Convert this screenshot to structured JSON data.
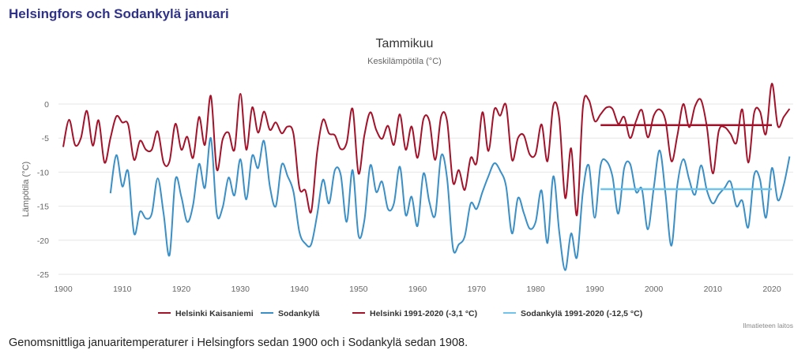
{
  "page": {
    "heading": "Helsingfors och Sodankylä januari",
    "caption": "Genomsnittliga januaritemperaturer i Helsingfors sedan 1900 och i Sodankylä sedan 1908."
  },
  "chart_data": {
    "type": "line",
    "title": "Tammikuu",
    "subtitle": "Keskilämpötila (°C)",
    "xlabel": "",
    "ylabel": "Lämpötila (°C)",
    "xlim": [
      1900,
      2023
    ],
    "ylim": [
      -25,
      0
    ],
    "x_ticks": [
      1900,
      1910,
      1920,
      1930,
      1940,
      1950,
      1960,
      1970,
      1980,
      1990,
      2000,
      2010,
      2020
    ],
    "y_ticks": [
      0,
      -5,
      -10,
      -15,
      -20,
      -25
    ],
    "grid": true,
    "legend_position": "bottom",
    "credit": "Ilmatieteen laitos",
    "series": [
      {
        "name": "Helsinki Kaisaniemi",
        "color": "#a4122a",
        "start_year": 1900,
        "values": [
          -6.3,
          -2.3,
          -6.0,
          -5.0,
          -1.0,
          -6.1,
          -2.4,
          -8.6,
          -5.0,
          -1.8,
          -2.7,
          -3.0,
          -8.2,
          -5.4,
          -6.7,
          -6.7,
          -4.0,
          -8.6,
          -8.4,
          -2.9,
          -6.7,
          -4.8,
          -7.9,
          -1.9,
          -6.0,
          1.2,
          -9.6,
          -5.2,
          -4.2,
          -6.7,
          1.5,
          -6.7,
          -0.5,
          -4.2,
          -1.1,
          -3.8,
          -2.7,
          -4.3,
          -3.3,
          -4.4,
          -12.3,
          -12.7,
          -15.8,
          -7.1,
          -2.3,
          -4.3,
          -4.6,
          -6.6,
          -5.7,
          -0.7,
          -10.2,
          -4.6,
          -1.2,
          -3.8,
          -5.1,
          -3.2,
          -6.0,
          -1.5,
          -6.7,
          -3.3,
          -7.9,
          -2.2,
          -2.5,
          -8.2,
          -1.8,
          -2.5,
          -11.5,
          -9.7,
          -12.6,
          -7.9,
          -8.6,
          -1.2,
          -6.9,
          -0.8,
          -1.7,
          -0.2,
          -8.2,
          -5.0,
          -4.6,
          -7.4,
          -7.3,
          -3.0,
          -8.4,
          -0.2,
          -2.1,
          -13.8,
          -6.5,
          -16.3,
          -0.5,
          0.6,
          -2.5,
          -1.5,
          -0.5,
          -0.7,
          -2.9,
          -1.9,
          -5.0,
          -2.5,
          -0.9,
          -4.9,
          -1.7,
          -0.8,
          -2.5,
          -8.4,
          -4.6,
          0.0,
          -3.4,
          -0.3,
          0.6,
          -3.4,
          -10.2,
          -4.0,
          -3.4,
          -4.4,
          -5.7,
          -0.8,
          -8.6,
          -1.3,
          -1.1,
          -4.4,
          3.0,
          -3.2,
          -1.9,
          -0.7
        ]
      },
      {
        "name": "Sodankylä",
        "color": "#3a8fc7",
        "start_year": 1908,
        "values": [
          -13.1,
          -7.5,
          -12.1,
          -9.9,
          -19.0,
          -15.8,
          -16.8,
          -16.1,
          -10.9,
          -16.1,
          -22.2,
          -11.1,
          -13.6,
          -17.3,
          -14.8,
          -8.8,
          -12.3,
          -5.0,
          -16.1,
          -15.2,
          -10.8,
          -13.4,
          -8.1,
          -14.0,
          -7.6,
          -9.4,
          -5.4,
          -12.1,
          -15.0,
          -8.9,
          -10.6,
          -12.9,
          -18.8,
          -20.5,
          -20.6,
          -16.3,
          -11.1,
          -14.6,
          -9.7,
          -10.4,
          -17.3,
          -9.7,
          -19.3,
          -17.1,
          -9.0,
          -12.9,
          -11.4,
          -15.4,
          -14.6,
          -9.2,
          -16.3,
          -13.6,
          -17.9,
          -10.2,
          -14.4,
          -16.3,
          -7.6,
          -10.9,
          -21.2,
          -20.6,
          -19.4,
          -14.6,
          -15.4,
          -12.9,
          -10.6,
          -8.7,
          -9.8,
          -12.1,
          -19.0,
          -13.8,
          -16.0,
          -18.3,
          -17.3,
          -12.7,
          -20.4,
          -10.6,
          -18.8,
          -24.4,
          -19.0,
          -22.5,
          -12.9,
          -9.0,
          -16.7,
          -9.0,
          -8.4,
          -10.6,
          -16.1,
          -9.4,
          -8.8,
          -12.9,
          -12.5,
          -18.4,
          -12.3,
          -6.8,
          -13.3,
          -20.8,
          -11.9,
          -8.1,
          -11.1,
          -13.3,
          -9.0,
          -12.7,
          -14.6,
          -13.3,
          -12.3,
          -11.4,
          -15.0,
          -14.2,
          -18.1,
          -10.4,
          -11.1,
          -16.7,
          -9.4,
          -14.1,
          -11.9,
          -7.7
        ]
      },
      {
        "name": "Helsinki 1991-2020 (-3,1 °C)",
        "color": "#a4122a",
        "x": [
          1991,
          2020
        ],
        "values": [
          -3.1,
          -3.1
        ]
      },
      {
        "name": "Sodankylä 1991-2020 (-12,5 °C)",
        "color": "#6fc3ec",
        "x": [
          1991,
          2020
        ],
        "values": [
          -12.5,
          -12.5
        ]
      }
    ]
  }
}
